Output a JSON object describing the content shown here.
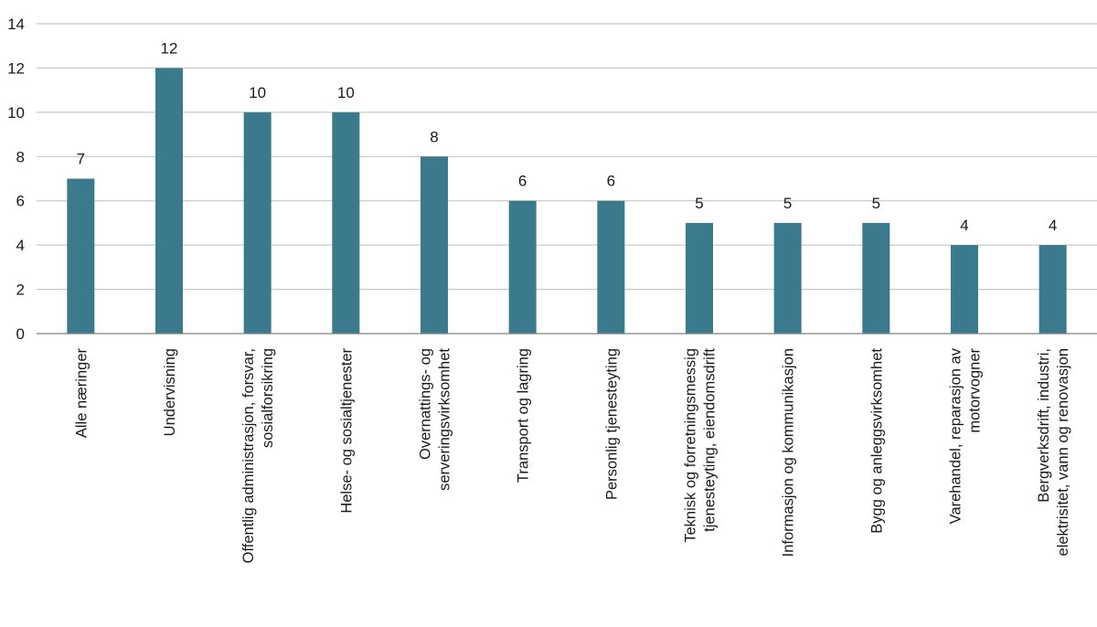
{
  "chart_data": {
    "type": "bar",
    "title": "",
    "xlabel": "",
    "ylabel": "",
    "ylim": [
      0,
      14
    ],
    "ytick_step": 2,
    "grid": true,
    "bar_color": "#3a7a8c",
    "categories": [
      [
        "Alle næringer"
      ],
      [
        "Undervisning"
      ],
      [
        "Offentlig administrasjon, forsvar,",
        "sosialforsikring"
      ],
      [
        "Helse- og sosialtjenester"
      ],
      [
        "Overnattings- og",
        "serveringsvirksomhet"
      ],
      [
        "Transport og lagring"
      ],
      [
        "Personlig tjenesteyting"
      ],
      [
        "Teknisk og forretningsmessig",
        "tjenesteyting, eiendomsdrift"
      ],
      [
        "Informasjon og kommunikasjon"
      ],
      [
        "Bygg og anleggsvirksomhet"
      ],
      [
        "Varehandel, reparasjon av",
        "motorvogner"
      ],
      [
        "Bergverksdrift, industri,",
        "elektrisitet, vann og renovasjon"
      ]
    ],
    "values": [
      7,
      12,
      10,
      10,
      8,
      6,
      6,
      5,
      5,
      5,
      4,
      4
    ]
  }
}
